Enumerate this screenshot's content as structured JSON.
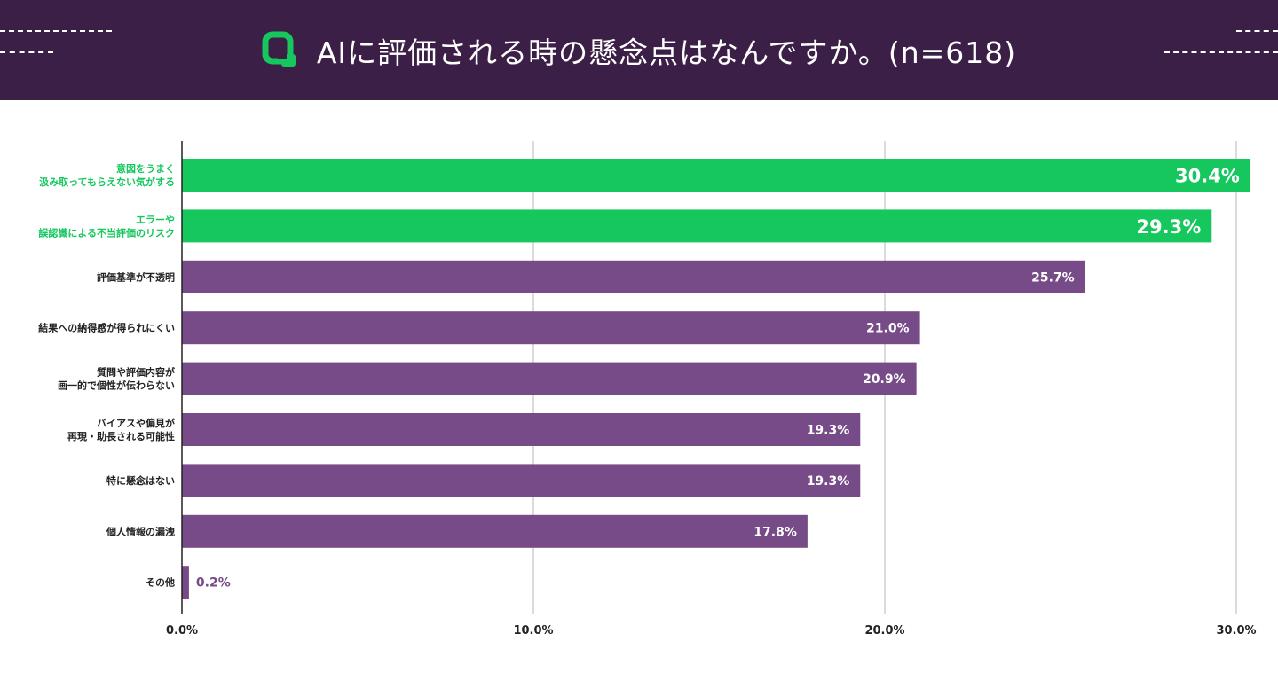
{
  "header": {
    "title": "AIに評価される時の懸念点はなんですか。(n=618)"
  },
  "colors": {
    "header_bg": "#3c1f47",
    "highlight": "#16c75e",
    "bar": "#774b87",
    "icon": "#16c75e"
  },
  "chart_data": {
    "type": "bar",
    "orientation": "horizontal",
    "title": "AIに評価される時の懸念点はなんですか。(n=618)",
    "categories": [
      [
        "意図をうまく",
        "汲み取ってもらえない気がする"
      ],
      [
        "エラーや",
        "誤認識による不当評価のリスク"
      ],
      [
        "評価基準が不透明"
      ],
      [
        "結果への納得感が得られにくい"
      ],
      [
        "質問や評価内容が",
        "画一的で個性が伝わらない"
      ],
      [
        "バイアスや偏見が",
        "再現・助長される可能性"
      ],
      [
        "特に懸念はない"
      ],
      [
        "個人情報の漏洩"
      ],
      [
        "その他"
      ]
    ],
    "values": [
      30.4,
      29.3,
      25.7,
      21.0,
      20.9,
      19.3,
      19.3,
      17.8,
      0.2
    ],
    "value_labels": [
      "30.4%",
      "29.3%",
      "25.7%",
      "21.0%",
      "20.9%",
      "19.3%",
      "19.3%",
      "17.8%",
      "0.2%"
    ],
    "highlighted": [
      true,
      true,
      false,
      false,
      false,
      false,
      false,
      false,
      false
    ],
    "xlim": [
      0,
      30
    ],
    "x_ticks": [
      "0.0%",
      "10.0%",
      "20.0%",
      "30.0%"
    ],
    "grid": true,
    "xlabel": "",
    "ylabel": ""
  }
}
